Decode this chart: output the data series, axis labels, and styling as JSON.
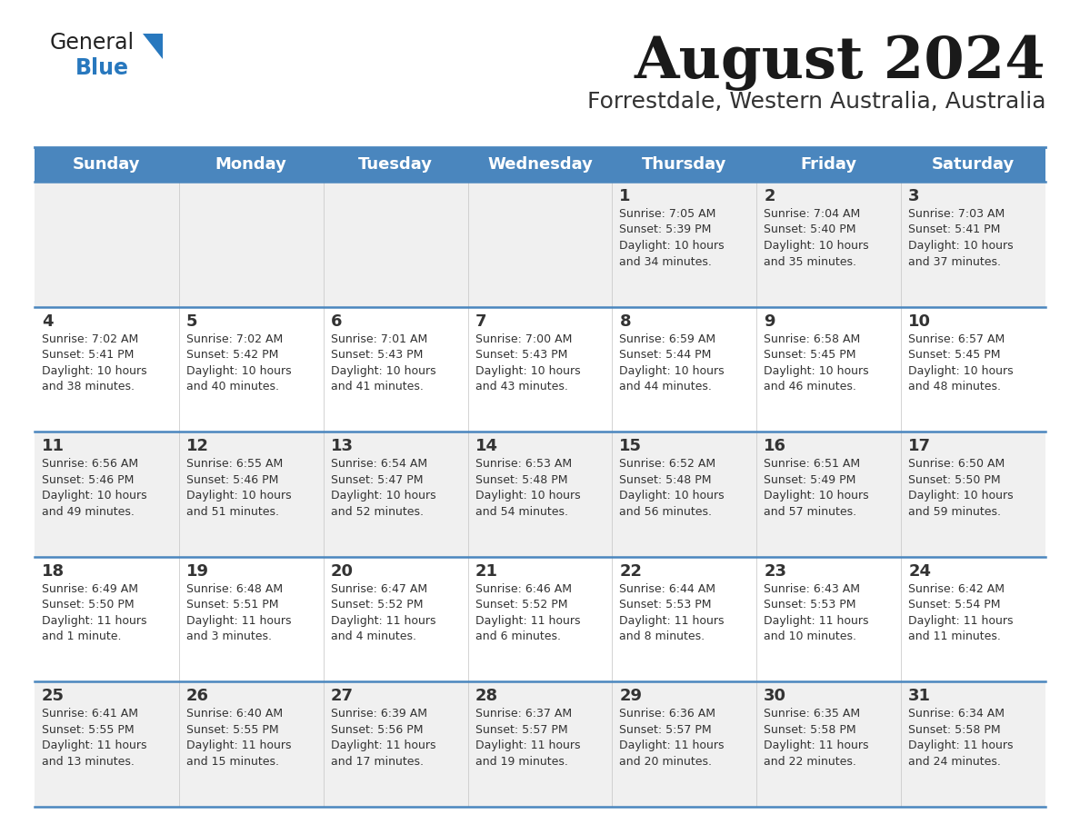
{
  "title": "August 2024",
  "subtitle": "Forrestdale, Western Australia, Australia",
  "header_bg_color": "#4a86be",
  "header_text_color": "#ffffff",
  "day_names": [
    "Sunday",
    "Monday",
    "Tuesday",
    "Wednesday",
    "Thursday",
    "Friday",
    "Saturday"
  ],
  "row_colors": [
    "#f0f0f0",
    "#ffffff"
  ],
  "border_color": "#4a86be",
  "text_color": "#333333",
  "title_color": "#1a1a1a",
  "subtitle_color": "#333333",
  "general_text_color": "#222222",
  "general_blue_color": "#2878be",
  "fig_width": 11.88,
  "fig_height": 9.18,
  "dpi": 100,
  "calendar": [
    [
      {
        "day": "",
        "sunrise": "",
        "sunset": "",
        "daylight": ""
      },
      {
        "day": "",
        "sunrise": "",
        "sunset": "",
        "daylight": ""
      },
      {
        "day": "",
        "sunrise": "",
        "sunset": "",
        "daylight": ""
      },
      {
        "day": "",
        "sunrise": "",
        "sunset": "",
        "daylight": ""
      },
      {
        "day": "1",
        "sunrise": "7:05 AM",
        "sunset": "5:39 PM",
        "daylight": "10 hours\nand 34 minutes."
      },
      {
        "day": "2",
        "sunrise": "7:04 AM",
        "sunset": "5:40 PM",
        "daylight": "10 hours\nand 35 minutes."
      },
      {
        "day": "3",
        "sunrise": "7:03 AM",
        "sunset": "5:41 PM",
        "daylight": "10 hours\nand 37 minutes."
      }
    ],
    [
      {
        "day": "4",
        "sunrise": "7:02 AM",
        "sunset": "5:41 PM",
        "daylight": "10 hours\nand 38 minutes."
      },
      {
        "day": "5",
        "sunrise": "7:02 AM",
        "sunset": "5:42 PM",
        "daylight": "10 hours\nand 40 minutes."
      },
      {
        "day": "6",
        "sunrise": "7:01 AM",
        "sunset": "5:43 PM",
        "daylight": "10 hours\nand 41 minutes."
      },
      {
        "day": "7",
        "sunrise": "7:00 AM",
        "sunset": "5:43 PM",
        "daylight": "10 hours\nand 43 minutes."
      },
      {
        "day": "8",
        "sunrise": "6:59 AM",
        "sunset": "5:44 PM",
        "daylight": "10 hours\nand 44 minutes."
      },
      {
        "day": "9",
        "sunrise": "6:58 AM",
        "sunset": "5:45 PM",
        "daylight": "10 hours\nand 46 minutes."
      },
      {
        "day": "10",
        "sunrise": "6:57 AM",
        "sunset": "5:45 PM",
        "daylight": "10 hours\nand 48 minutes."
      }
    ],
    [
      {
        "day": "11",
        "sunrise": "6:56 AM",
        "sunset": "5:46 PM",
        "daylight": "10 hours\nand 49 minutes."
      },
      {
        "day": "12",
        "sunrise": "6:55 AM",
        "sunset": "5:46 PM",
        "daylight": "10 hours\nand 51 minutes."
      },
      {
        "day": "13",
        "sunrise": "6:54 AM",
        "sunset": "5:47 PM",
        "daylight": "10 hours\nand 52 minutes."
      },
      {
        "day": "14",
        "sunrise": "6:53 AM",
        "sunset": "5:48 PM",
        "daylight": "10 hours\nand 54 minutes."
      },
      {
        "day": "15",
        "sunrise": "6:52 AM",
        "sunset": "5:48 PM",
        "daylight": "10 hours\nand 56 minutes."
      },
      {
        "day": "16",
        "sunrise": "6:51 AM",
        "sunset": "5:49 PM",
        "daylight": "10 hours\nand 57 minutes."
      },
      {
        "day": "17",
        "sunrise": "6:50 AM",
        "sunset": "5:50 PM",
        "daylight": "10 hours\nand 59 minutes."
      }
    ],
    [
      {
        "day": "18",
        "sunrise": "6:49 AM",
        "sunset": "5:50 PM",
        "daylight": "11 hours\nand 1 minute."
      },
      {
        "day": "19",
        "sunrise": "6:48 AM",
        "sunset": "5:51 PM",
        "daylight": "11 hours\nand 3 minutes."
      },
      {
        "day": "20",
        "sunrise": "6:47 AM",
        "sunset": "5:52 PM",
        "daylight": "11 hours\nand 4 minutes."
      },
      {
        "day": "21",
        "sunrise": "6:46 AM",
        "sunset": "5:52 PM",
        "daylight": "11 hours\nand 6 minutes."
      },
      {
        "day": "22",
        "sunrise": "6:44 AM",
        "sunset": "5:53 PM",
        "daylight": "11 hours\nand 8 minutes."
      },
      {
        "day": "23",
        "sunrise": "6:43 AM",
        "sunset": "5:53 PM",
        "daylight": "11 hours\nand 10 minutes."
      },
      {
        "day": "24",
        "sunrise": "6:42 AM",
        "sunset": "5:54 PM",
        "daylight": "11 hours\nand 11 minutes."
      }
    ],
    [
      {
        "day": "25",
        "sunrise": "6:41 AM",
        "sunset": "5:55 PM",
        "daylight": "11 hours\nand 13 minutes."
      },
      {
        "day": "26",
        "sunrise": "6:40 AM",
        "sunset": "5:55 PM",
        "daylight": "11 hours\nand 15 minutes."
      },
      {
        "day": "27",
        "sunrise": "6:39 AM",
        "sunset": "5:56 PM",
        "daylight": "11 hours\nand 17 minutes."
      },
      {
        "day": "28",
        "sunrise": "6:37 AM",
        "sunset": "5:57 PM",
        "daylight": "11 hours\nand 19 minutes."
      },
      {
        "day": "29",
        "sunrise": "6:36 AM",
        "sunset": "5:57 PM",
        "daylight": "11 hours\nand 20 minutes."
      },
      {
        "day": "30",
        "sunrise": "6:35 AM",
        "sunset": "5:58 PM",
        "daylight": "11 hours\nand 22 minutes."
      },
      {
        "day": "31",
        "sunrise": "6:34 AM",
        "sunset": "5:58 PM",
        "daylight": "11 hours\nand 24 minutes."
      }
    ]
  ]
}
